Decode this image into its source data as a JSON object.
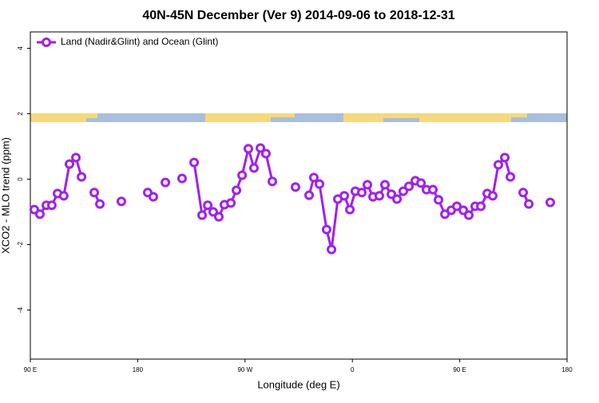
{
  "chart_data": {
    "type": "line",
    "title": "40N-45N December (Ver 9)   2014-09-06 to 2018-12-31",
    "x_label": "Longitude (deg E)",
    "y_label": "XCO2 - MLO trend (ppm)",
    "xlim": [
      90,
      540
    ],
    "ylim": [
      -5.5,
      4.5
    ],
    "xticks": [
      {
        "value": 90,
        "label": "90 E"
      },
      {
        "value": 180,
        "label": "180"
      },
      {
        "value": 270,
        "label": "90 W"
      },
      {
        "value": 360,
        "label": "0"
      },
      {
        "value": 450,
        "label": "90 E"
      },
      {
        "value": 540,
        "label": "180"
      }
    ],
    "yticks": [
      -4,
      -2,
      0,
      2,
      4
    ],
    "legend": "top-left",
    "series": [
      {
        "name": "Land (Nadir&Glint) and Ocean (Glint)",
        "color": "#a020f0",
        "x": [
          93.3,
          98,
          103.4,
          108,
          112.8,
          118,
          122.8,
          128.2,
          132.9,
          null,
          143.6,
          148.3,
          null,
          166.3,
          null,
          188.4,
          193.1,
          null,
          203.2,
          null,
          217.2,
          null,
          227.3,
          234,
          238.7,
          243.3,
          248,
          252.7,
          258.1,
          262.8,
          267.5,
          272.8,
          277.5,
          282.9,
          287.5,
          292.9,
          null,
          312.3,
          null,
          323.7,
          327.7,
          332.4,
          338.4,
          342.5,
          347.8,
          353.2,
          357.9,
          362.5,
          367.9,
          372.6,
          377.3,
          382.6,
          387.3,
          392.7,
          397.4,
          402.7,
          407.4,
          412.8,
          417.5,
          422.1,
          427.5,
          432.2,
          437.6,
          442.9,
          447.6,
          453,
          457.6,
          463,
          467.7,
          473.1,
          477.7,
          482.4,
          487.8,
          492.5,
          null,
          503.2,
          507.9,
          null,
          525.9
        ],
        "values": [
          -0.93,
          -1.07,
          -0.8,
          -0.8,
          -0.44,
          -0.51,
          0.46,
          0.66,
          0.07,
          null,
          -0.41,
          -0.76,
          null,
          -0.68,
          null,
          -0.41,
          -0.54,
          null,
          -0.1,
          null,
          0.02,
          null,
          0.51,
          -1.1,
          -0.8,
          -1.0,
          -1.15,
          -0.78,
          -0.73,
          -0.34,
          0.12,
          0.93,
          0.34,
          0.95,
          0.78,
          -0.07,
          null,
          -0.24,
          null,
          -0.49,
          0.05,
          -0.15,
          -1.54,
          -2.15,
          -0.61,
          -0.51,
          -0.93,
          -0.37,
          -0.41,
          -0.17,
          -0.54,
          -0.51,
          -0.17,
          -0.46,
          -0.61,
          -0.37,
          -0.22,
          -0.05,
          -0.12,
          -0.32,
          -0.32,
          -0.63,
          -1.07,
          -0.95,
          -0.83,
          -0.95,
          -1.1,
          -0.83,
          -0.83,
          -0.44,
          -0.51,
          0.44,
          0.66,
          0.07,
          null,
          -0.41,
          -0.76,
          null,
          -0.71
        ]
      }
    ]
  }
}
